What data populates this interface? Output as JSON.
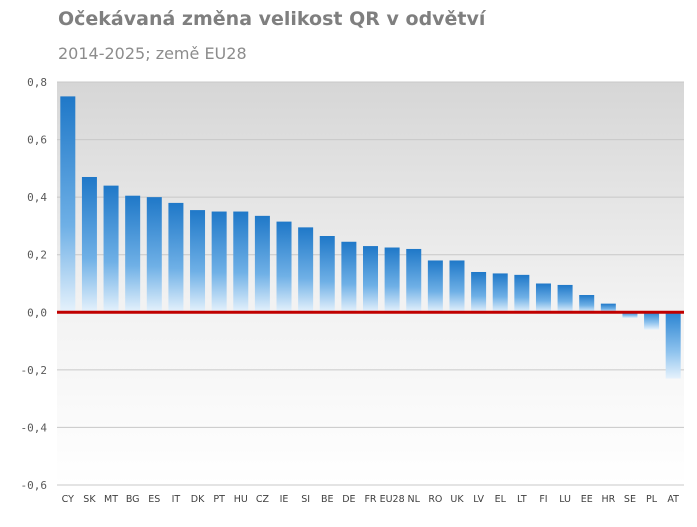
{
  "chart_data": {
    "type": "bar",
    "title": "Očekávaná změna velikost QR v odvětví",
    "subtitle": "2014-2025; země EU28",
    "xlabel": "",
    "ylabel": "",
    "ylim": [
      -0.6,
      0.8
    ],
    "yticks": [
      0.8,
      0.6,
      0.4,
      0.2,
      0.0,
      -0.2,
      -0.4,
      -0.6
    ],
    "ytick_labels": [
      "0,8",
      "0,6",
      "0,4",
      "0,2",
      "0,0",
      "-0,2",
      "-0,4",
      "-0,6"
    ],
    "grid": true,
    "legend": "none",
    "categories": [
      "CY",
      "SK",
      "MT",
      "BG",
      "ES",
      "IT",
      "DK",
      "PT",
      "HU",
      "CZ",
      "IE",
      "SI",
      "BE",
      "DE",
      "FR",
      "EU28",
      "NL",
      "RO",
      "UK",
      "LV",
      "EL",
      "LT",
      "FI",
      "LU",
      "EE",
      "HR",
      "SE",
      "PL",
      "AT"
    ],
    "values": [
      0.75,
      0.47,
      0.44,
      0.405,
      0.4,
      0.38,
      0.355,
      0.35,
      0.35,
      0.335,
      0.315,
      0.295,
      0.265,
      0.245,
      0.23,
      0.225,
      0.22,
      0.18,
      0.18,
      0.14,
      0.135,
      0.13,
      0.1,
      0.095,
      0.06,
      0.03,
      -0.02,
      -0.06,
      -0.23
    ],
    "colors": {
      "bar": "#1f78c8",
      "zero_line": "#c00000",
      "grid": "#c8c8c8"
    }
  }
}
